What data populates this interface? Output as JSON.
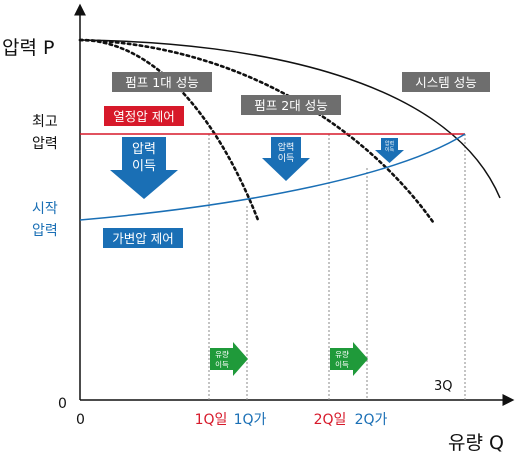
{
  "axes": {
    "y_label": "압력 P",
    "x_label": "유량 Q",
    "origin_y": "0",
    "origin_x": "0"
  },
  "labels": {
    "max_pressure": [
      "최고",
      "압력"
    ],
    "start_pressure": [
      "시작",
      "압력"
    ],
    "system_curve": "시스템 성능",
    "pump1_curve": "펌프 1대 성능",
    "pump2_curve": "펌프 2대 성능",
    "fixed_control": "열정압 제어",
    "variable_control": "가변압 제어",
    "q3": "3Q"
  },
  "pressure_arrows": [
    {
      "text": [
        "압력",
        "이득"
      ]
    },
    {
      "text": [
        "압력",
        "이득"
      ]
    },
    {
      "text": [
        "압력",
        "이득"
      ]
    }
  ],
  "flow_arrows": [
    {
      "text": [
        "유량",
        "이득"
      ]
    },
    {
      "text": [
        "유량",
        "이득"
      ]
    }
  ],
  "x_ticks": [
    {
      "text": "1Q일",
      "color": "#d7192a"
    },
    {
      "text": "1Q가",
      "color": "#1a6fb5"
    },
    {
      "text": "2Q일",
      "color": "#d7192a"
    },
    {
      "text": "2Q가",
      "color": "#1a6fb5"
    }
  ],
  "colors": {
    "red": "#d7192a",
    "blue": "#1a6fb5",
    "green": "#1f9a3a",
    "gray_box": "#6e6e6e",
    "curve": "#111111"
  }
}
